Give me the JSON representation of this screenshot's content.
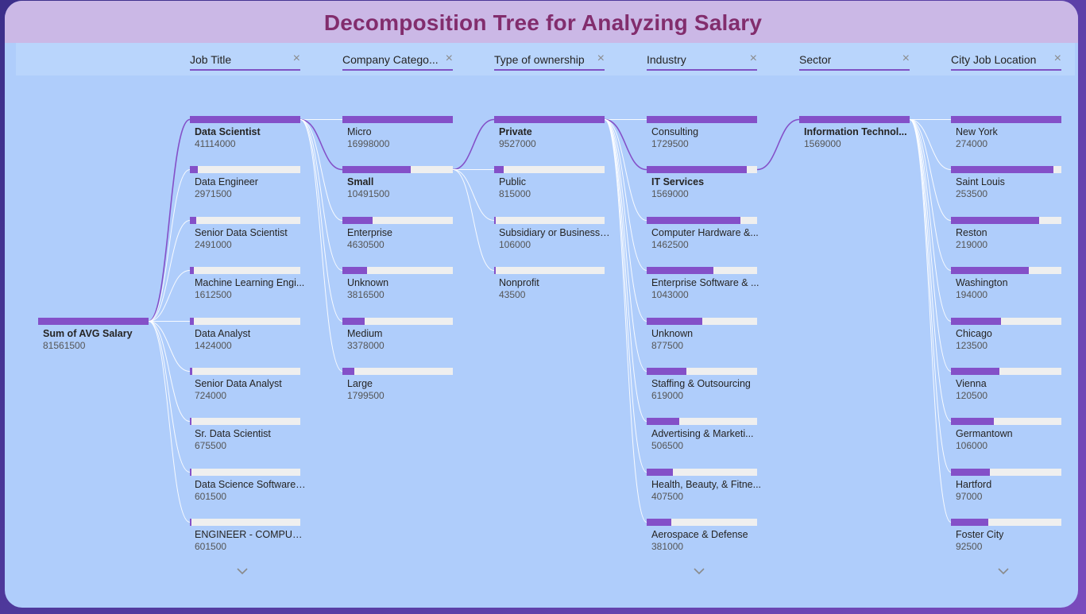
{
  "title": "Decomposition Tree for Analyzing Salary",
  "accent_color": "#8450c8",
  "root": {
    "label": "Sum of AVG Salary",
    "value": "81561500"
  },
  "columns": [
    {
      "header": "Job Title",
      "selected": 0,
      "nodes": [
        {
          "label": "Data Scientist",
          "value": "41114000",
          "fraction": 1.0
        },
        {
          "label": "Data Engineer",
          "value": "2971500",
          "fraction": 0.072
        },
        {
          "label": "Senior Data Scientist",
          "value": "2491000",
          "fraction": 0.061
        },
        {
          "label": "Machine Learning Engi...",
          "value": "1612500",
          "fraction": 0.039
        },
        {
          "label": "Data Analyst",
          "value": "1424000",
          "fraction": 0.035
        },
        {
          "label": "Senior Data Analyst",
          "value": "724000",
          "fraction": 0.018
        },
        {
          "label": "Sr. Data Scientist",
          "value": "675500",
          "fraction": 0.016
        },
        {
          "label": "Data Science Software ...",
          "value": "601500",
          "fraction": 0.015
        },
        {
          "label": "ENGINEER - COMPUTE...",
          "value": "601500",
          "fraction": 0.015
        }
      ],
      "more_below": true
    },
    {
      "header": "Company Catego...",
      "selected": 1,
      "nodes": [
        {
          "label": "Micro",
          "value": "16998000",
          "fraction": 1.0
        },
        {
          "label": "Small",
          "value": "10491500",
          "fraction": 0.617
        },
        {
          "label": "Enterprise",
          "value": "4630500",
          "fraction": 0.272
        },
        {
          "label": "Unknown",
          "value": "3816500",
          "fraction": 0.225
        },
        {
          "label": "Medium",
          "value": "3378000",
          "fraction": 0.199
        },
        {
          "label": "Large",
          "value": "1799500",
          "fraction": 0.106
        }
      ],
      "more_below": false
    },
    {
      "header": "Type of ownership",
      "selected": 0,
      "nodes": [
        {
          "label": "Private",
          "value": "9527000",
          "fraction": 1.0
        },
        {
          "label": "Public",
          "value": "815000",
          "fraction": 0.086
        },
        {
          "label": "Subsidiary or Business ...",
          "value": "106000",
          "fraction": 0.011
        },
        {
          "label": "Nonprofit",
          "value": "43500",
          "fraction": 0.005
        }
      ],
      "more_below": false
    },
    {
      "header": "Industry",
      "selected": 1,
      "nodes": [
        {
          "label": "Consulting",
          "value": "1729500",
          "fraction": 1.0
        },
        {
          "label": "IT Services",
          "value": "1569000",
          "fraction": 0.907
        },
        {
          "label": "Computer Hardware &...",
          "value": "1462500",
          "fraction": 0.846
        },
        {
          "label": "Enterprise Software & ...",
          "value": "1043000",
          "fraction": 0.603
        },
        {
          "label": "Unknown",
          "value": "877500",
          "fraction": 0.507
        },
        {
          "label": "Staffing & Outsourcing",
          "value": "619000",
          "fraction": 0.358
        },
        {
          "label": "Advertising & Marketi...",
          "value": "506500",
          "fraction": 0.293
        },
        {
          "label": "Health, Beauty, & Fitne...",
          "value": "407500",
          "fraction": 0.236
        },
        {
          "label": "Aerospace & Defense",
          "value": "381000",
          "fraction": 0.22
        }
      ],
      "more_below": true
    },
    {
      "header": "Sector",
      "selected": 0,
      "nodes": [
        {
          "label": "Information Technol...",
          "value": "1569000",
          "fraction": 1.0
        }
      ],
      "more_below": false
    },
    {
      "header": "City Job Location",
      "selected": -1,
      "nodes": [
        {
          "label": "New York",
          "value": "274000",
          "fraction": 1.0
        },
        {
          "label": "Saint Louis",
          "value": "253500",
          "fraction": 0.925
        },
        {
          "label": "Reston",
          "value": "219000",
          "fraction": 0.799
        },
        {
          "label": "Washington",
          "value": "194000",
          "fraction": 0.708
        },
        {
          "label": "Chicago",
          "value": "123500",
          "fraction": 0.451
        },
        {
          "label": "Vienna",
          "value": "120500",
          "fraction": 0.44
        },
        {
          "label": "Germantown",
          "value": "106000",
          "fraction": 0.387
        },
        {
          "label": "Hartford",
          "value": "97000",
          "fraction": 0.354
        },
        {
          "label": "Foster City",
          "value": "92500",
          "fraction": 0.338
        }
      ],
      "more_below": true
    }
  ]
}
